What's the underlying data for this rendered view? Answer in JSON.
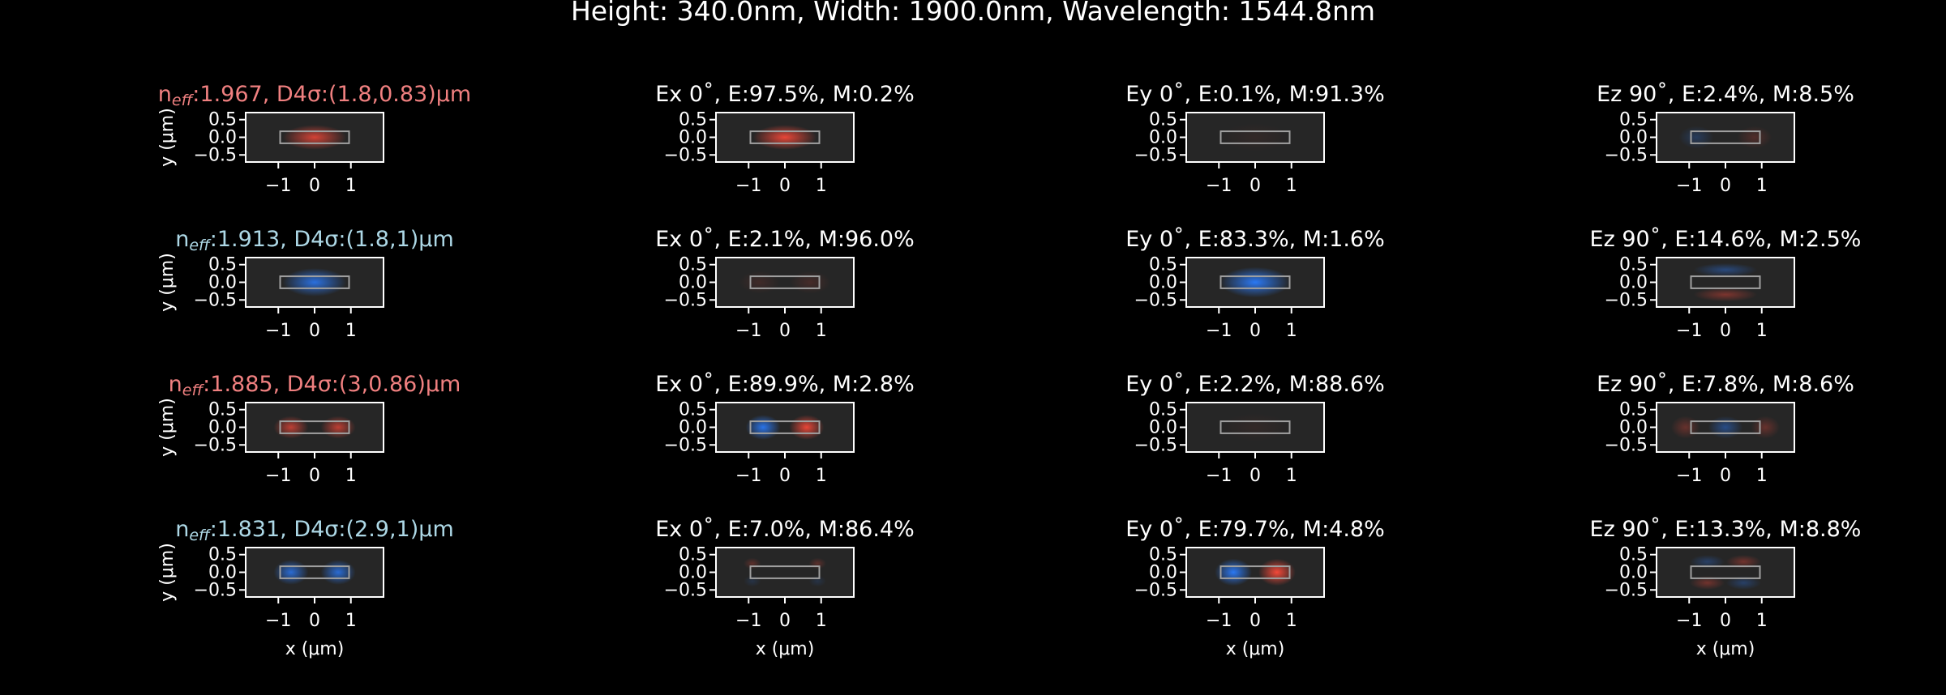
{
  "figure": {
    "title": "Height: 340.0nm, Width: 1900.0nm, Wavelength: 1544.8nm"
  },
  "colors": {
    "background": "#000000",
    "panel_bg": "#262626",
    "positive": "#ff4a3a",
    "negative": "#2b7dff",
    "title_even": "#f08080",
    "title_odd": "#add8e6",
    "core_outline": "#a0a0a0"
  },
  "chart_data": {
    "type": "heatmap",
    "xlabel": "x (μm)",
    "ylabel": "y (μm)",
    "xlim": [
      -1.9,
      1.9
    ],
    "ylim": [
      -0.7,
      0.7
    ],
    "xticks": [
      "−1",
      "0",
      "1"
    ],
    "yticks": [
      "0.5",
      "0.0",
      "−0.5"
    ],
    "core": {
      "width_um": 1.9,
      "height_um": 0.34
    },
    "rows": [
      {
        "mode_title_prefix": "n",
        "mode_title_sub": "eff",
        "mode_title_rest": ":1.967, D4σ:(1.8,0.83)μm",
        "mode_title_color": "#f08080",
        "panels": [
          {
            "title": "",
            "lobes": [
              {
                "x": 0,
                "y": 0,
                "sx": 0.55,
                "sy": 0.22,
                "amp": 0.8
              }
            ]
          },
          {
            "title": "Ex 0˚, E:97.5%, M:0.2%",
            "lobes": [
              {
                "x": 0,
                "y": 0,
                "sx": 0.55,
                "sy": 0.22,
                "amp": 0.9
              }
            ]
          },
          {
            "title": "Ey 0˚, E:0.1%, M:91.3%",
            "lobes": [
              {
                "x": 0,
                "y": 0,
                "sx": 0.6,
                "sy": 0.25,
                "amp": 0.06
              }
            ]
          },
          {
            "title": "Ez 90˚, E:2.4%, M:8.5%",
            "lobes": [
              {
                "x": -0.8,
                "y": 0,
                "sx": 0.3,
                "sy": 0.2,
                "amp": -0.25
              },
              {
                "x": 0.8,
                "y": 0,
                "sx": 0.3,
                "sy": 0.2,
                "amp": 0.2
              }
            ]
          }
        ]
      },
      {
        "mode_title_prefix": "n",
        "mode_title_sub": "eff",
        "mode_title_rest": ":1.913, D4σ:(1.8,1)μm",
        "mode_title_color": "#add8e6",
        "panels": [
          {
            "title": "",
            "lobes": [
              {
                "x": 0,
                "y": 0,
                "sx": 0.55,
                "sy": 0.25,
                "amp": -0.85
              }
            ]
          },
          {
            "title": "Ex 0˚, E:2.1%, M:96.0%",
            "lobes": [
              {
                "x": -0.7,
                "y": 0,
                "sx": 0.35,
                "sy": 0.2,
                "amp": 0.12
              },
              {
                "x": 0.7,
                "y": 0,
                "sx": 0.35,
                "sy": 0.2,
                "amp": 0.15
              }
            ]
          },
          {
            "title": "Ey 0˚, E:83.3%, M:1.6%",
            "lobes": [
              {
                "x": 0,
                "y": 0,
                "sx": 0.6,
                "sy": 0.27,
                "amp": -0.95
              }
            ]
          },
          {
            "title": "Ez 90˚, E:14.6%, M:2.5%",
            "lobes": [
              {
                "x": 0,
                "y": 0.35,
                "sx": 0.55,
                "sy": 0.12,
                "amp": -0.4
              },
              {
                "x": 0,
                "y": -0.35,
                "sx": 0.55,
                "sy": 0.12,
                "amp": 0.4
              }
            ]
          }
        ]
      },
      {
        "mode_title_prefix": "n",
        "mode_title_sub": "eff",
        "mode_title_rest": ":1.885, D4σ:(3,0.86)μm",
        "mode_title_color": "#f08080",
        "panels": [
          {
            "title": "",
            "lobes": [
              {
                "x": -0.65,
                "y": 0,
                "sx": 0.3,
                "sy": 0.2,
                "amp": 0.7
              },
              {
                "x": 0.65,
                "y": 0,
                "sx": 0.3,
                "sy": 0.2,
                "amp": 0.7
              }
            ]
          },
          {
            "title": "Ex 0˚, E:89.9%, M:2.8%",
            "lobes": [
              {
                "x": -0.6,
                "y": 0,
                "sx": 0.3,
                "sy": 0.22,
                "amp": -0.9
              },
              {
                "x": 0.6,
                "y": 0,
                "sx": 0.3,
                "sy": 0.22,
                "amp": 0.9
              }
            ]
          },
          {
            "title": "Ey 0˚, E:2.2%, M:88.6%",
            "lobes": [
              {
                "x": 0,
                "y": 0,
                "sx": 0.6,
                "sy": 0.25,
                "amp": 0.06
              }
            ]
          },
          {
            "title": "Ez 90˚, E:7.8%, M:8.6%",
            "lobes": [
              {
                "x": 0,
                "y": 0,
                "sx": 0.3,
                "sy": 0.2,
                "amp": -0.45
              },
              {
                "x": -1.1,
                "y": 0,
                "sx": 0.25,
                "sy": 0.2,
                "amp": 0.3
              },
              {
                "x": 1.1,
                "y": 0,
                "sx": 0.25,
                "sy": 0.2,
                "amp": 0.3
              }
            ]
          }
        ]
      },
      {
        "mode_title_prefix": "n",
        "mode_title_sub": "eff",
        "mode_title_rest": ":1.831, D4σ:(2.9,1)μm",
        "mode_title_color": "#add8e6",
        "panels": [
          {
            "title": "",
            "lobes": [
              {
                "x": -0.65,
                "y": 0,
                "sx": 0.3,
                "sy": 0.22,
                "amp": -0.8
              },
              {
                "x": 0.65,
                "y": 0,
                "sx": 0.3,
                "sy": 0.22,
                "amp": -0.8
              }
            ]
          },
          {
            "title": "Ex 0˚, E:7.0%, M:86.4%",
            "lobes": [
              {
                "x": -0.9,
                "y": 0.25,
                "sx": 0.15,
                "sy": 0.1,
                "amp": 0.25
              },
              {
                "x": 0.9,
                "y": 0.25,
                "sx": 0.15,
                "sy": 0.1,
                "amp": 0.25
              },
              {
                "x": -0.9,
                "y": -0.25,
                "sx": 0.15,
                "sy": 0.1,
                "amp": -0.15
              },
              {
                "x": 0.9,
                "y": -0.25,
                "sx": 0.15,
                "sy": 0.1,
                "amp": -0.15
              }
            ]
          },
          {
            "title": "Ey 0˚, E:79.7%, M:4.8%",
            "lobes": [
              {
                "x": -0.6,
                "y": 0,
                "sx": 0.32,
                "sy": 0.24,
                "amp": -0.95
              },
              {
                "x": 0.6,
                "y": 0,
                "sx": 0.32,
                "sy": 0.24,
                "amp": 0.95
              }
            ]
          },
          {
            "title": "Ez 90˚, E:13.3%, M:8.8%",
            "lobes": [
              {
                "x": -0.5,
                "y": 0.3,
                "sx": 0.3,
                "sy": 0.12,
                "amp": -0.3
              },
              {
                "x": 0.5,
                "y": 0.3,
                "sx": 0.3,
                "sy": 0.12,
                "amp": 0.35
              },
              {
                "x": -0.5,
                "y": -0.3,
                "sx": 0.3,
                "sy": 0.12,
                "amp": 0.35
              },
              {
                "x": 0.5,
                "y": -0.3,
                "sx": 0.3,
                "sy": 0.12,
                "amp": -0.3
              }
            ]
          }
        ]
      }
    ]
  }
}
